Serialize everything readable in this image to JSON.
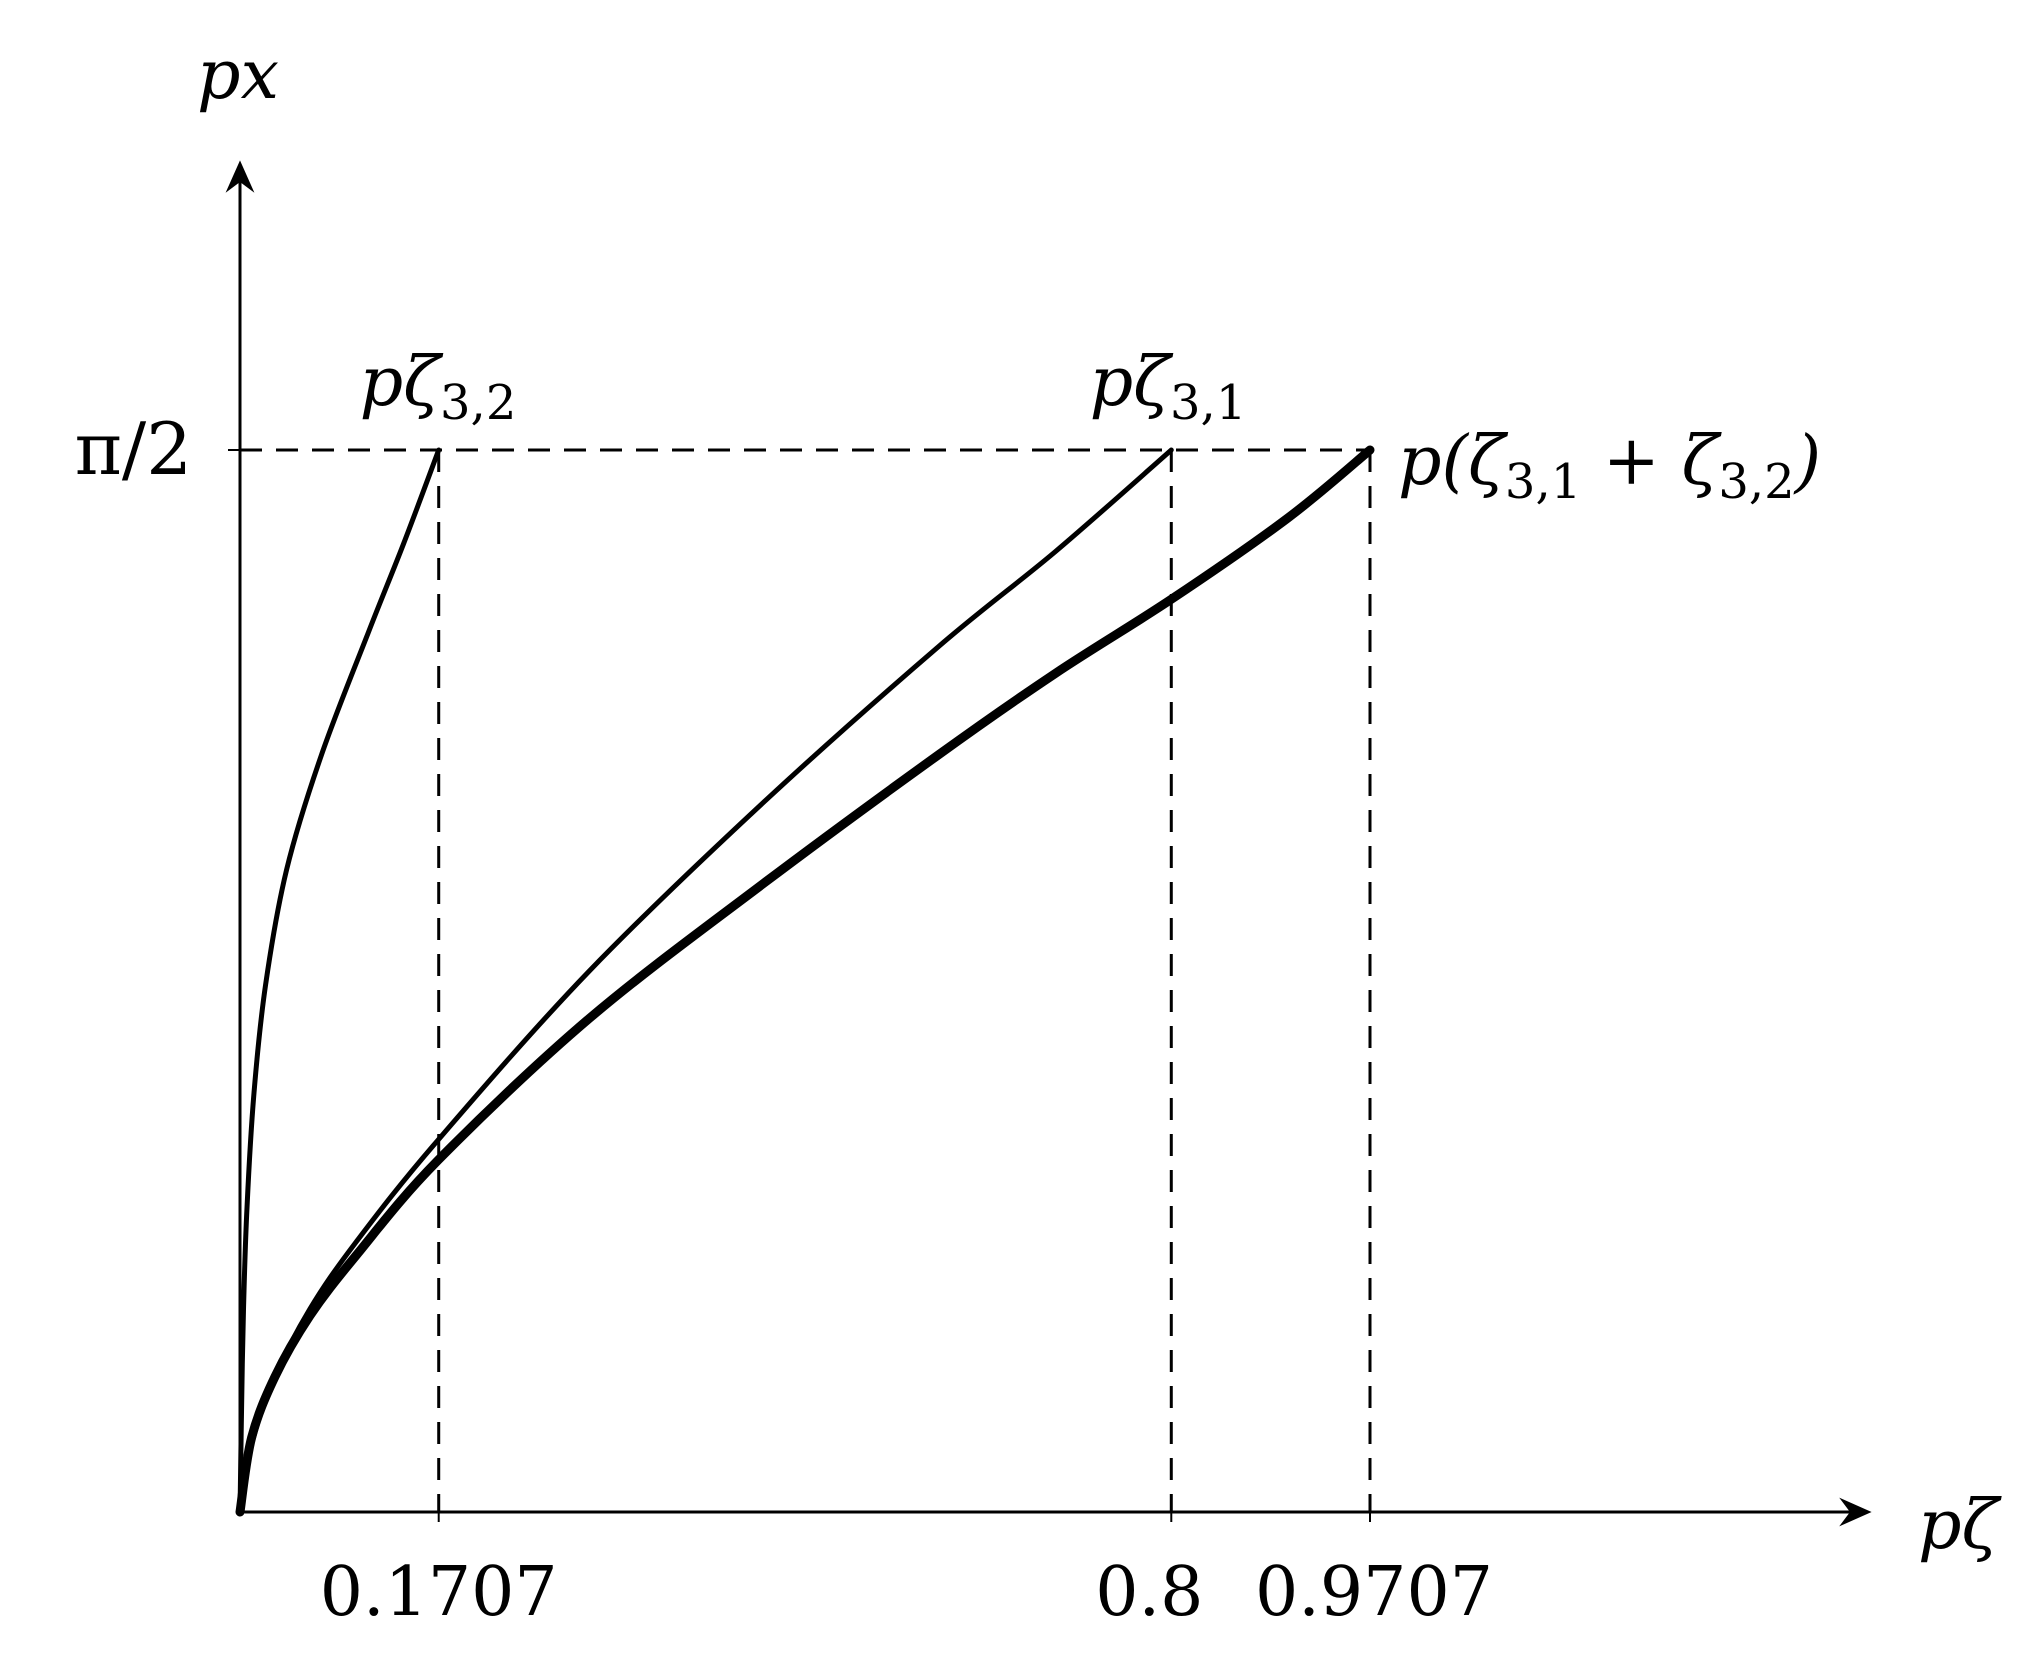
{
  "chart_data": {
    "type": "line",
    "title": "",
    "xlabel": "pζ",
    "ylabel": "px",
    "xlim": [
      0,
      1.1
    ],
    "ylim": [
      0,
      1.5708
    ],
    "grid": false,
    "x_ticks": [
      {
        "value": 0.1707,
        "label": "0.1707"
      },
      {
        "value": 0.8,
        "label": "0.8"
      },
      {
        "value": 0.9707,
        "label": "0.9707"
      }
    ],
    "y_ticks": [
      {
        "value": 1.5708,
        "label": "π/2"
      }
    ],
    "series": [
      {
        "name": "pζ3,2",
        "stroke": "thin",
        "points": [
          [
            0,
            0
          ],
          [
            0.001,
            0.12
          ],
          [
            0.003,
            0.3
          ],
          [
            0.006,
            0.45
          ],
          [
            0.012,
            0.62
          ],
          [
            0.022,
            0.78
          ],
          [
            0.04,
            0.95
          ],
          [
            0.07,
            1.12
          ],
          [
            0.11,
            1.3
          ],
          [
            0.14,
            1.43
          ],
          [
            0.1707,
            1.5708
          ]
        ]
      },
      {
        "name": "pζ3,1",
        "stroke": "thin",
        "points": [
          [
            0,
            0
          ],
          [
            0.01,
            0.1
          ],
          [
            0.03,
            0.2
          ],
          [
            0.06,
            0.3
          ],
          [
            0.1,
            0.4
          ],
          [
            0.17,
            0.55
          ],
          [
            0.3,
            0.8
          ],
          [
            0.45,
            1.05
          ],
          [
            0.6,
            1.28
          ],
          [
            0.7,
            1.42
          ],
          [
            0.8,
            1.5708
          ]
        ]
      },
      {
        "name": "p(ζ3,1 + ζ3,2)",
        "stroke": "thick",
        "points": [
          [
            0,
            0
          ],
          [
            0.01,
            0.11
          ],
          [
            0.03,
            0.2
          ],
          [
            0.06,
            0.29
          ],
          [
            0.1,
            0.38
          ],
          [
            0.17,
            0.52
          ],
          [
            0.3,
            0.73
          ],
          [
            0.45,
            0.93
          ],
          [
            0.6,
            1.12
          ],
          [
            0.7,
            1.24
          ],
          [
            0.8,
            1.35
          ],
          [
            0.9,
            1.47
          ],
          [
            0.9707,
            1.5708
          ]
        ]
      }
    ],
    "annotations": [
      {
        "text": "p",
        "symbol": "ζ",
        "sub": "3,2",
        "x": 0.1707,
        "y": 1.5708,
        "position": "above"
      },
      {
        "text": "p",
        "symbol": "ζ",
        "sub": "3,1",
        "x": 0.8,
        "y": 1.5708,
        "position": "above"
      },
      {
        "text": "p(ζ",
        "sub1": "3,1",
        "mid": " + ζ",
        "sub2": "3,2",
        "end": ")",
        "x": 0.9707,
        "y": 1.5708,
        "position": "right"
      }
    ]
  }
}
